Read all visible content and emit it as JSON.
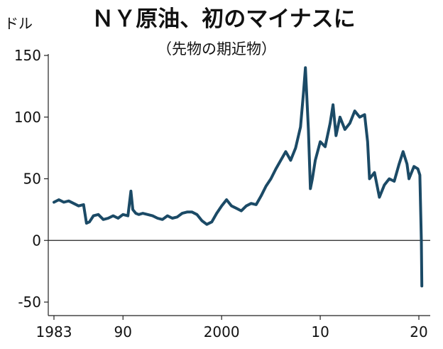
{
  "chart_data": {
    "type": "line",
    "title": "ＮＹ原油、初のマイナスに",
    "subtitle": "（先物の期近物）",
    "ylabel": "ドル",
    "xlabel": "",
    "ylim": [
      -50,
      150
    ],
    "xlim": [
      1983,
      2020.5
    ],
    "grid": false,
    "legend": "none",
    "y_ticks": [
      {
        "value": 150,
        "label": "150"
      },
      {
        "value": 100,
        "label": "100"
      },
      {
        "value": 50,
        "label": "50"
      },
      {
        "value": 0,
        "label": "0"
      },
      {
        "value": -50,
        "label": "-50"
      }
    ],
    "x_ticks": [
      {
        "value": 1983,
        "label": "1983"
      },
      {
        "value": 1990,
        "label": "90"
      },
      {
        "value": 2000,
        "label": "2000"
      },
      {
        "value": 2010,
        "label": "10"
      },
      {
        "value": 2020,
        "label": "20"
      }
    ],
    "colors": {
      "line": "#1b4a66",
      "axis": "#222222",
      "zero_line": "#222222"
    },
    "series": [
      {
        "x": [
          1983.0,
          1983.5,
          1984.0,
          1984.5,
          1985.0,
          1985.5,
          1986.0,
          1986.3,
          1986.6,
          1987.0,
          1987.5,
          1988.0,
          1988.5,
          1989.0,
          1989.5,
          1990.0,
          1990.5,
          1990.8,
          1991.0,
          1991.3,
          1991.6,
          1992.0,
          1992.5,
          1993.0,
          1993.5,
          1994.0,
          1994.5,
          1995.0,
          1995.5,
          1996.0,
          1996.5,
          1997.0,
          1997.5,
          1998.0,
          1998.5,
          1999.0,
          1999.5,
          2000.0,
          2000.5,
          2001.0,
          2001.5,
          2002.0,
          2002.5,
          2003.0,
          2003.5,
          2004.0,
          2004.5,
          2005.0,
          2005.5,
          2006.0,
          2006.5,
          2007.0,
          2007.5,
          2008.0,
          2008.3,
          2008.5,
          2008.8,
          2009.0,
          2009.2,
          2009.5,
          2010.0,
          2010.5,
          2011.0,
          2011.3,
          2011.6,
          2012.0,
          2012.5,
          2013.0,
          2013.5,
          2014.0,
          2014.5,
          2014.8,
          2015.0,
          2015.5,
          2016.0,
          2016.5,
          2017.0,
          2017.5,
          2018.0,
          2018.4,
          2018.8,
          2019.0,
          2019.5,
          2019.9,
          2020.1,
          2020.25,
          2020.3
        ],
        "values": [
          31,
          33,
          31,
          32,
          30,
          28,
          29,
          14,
          15,
          20,
          21,
          17,
          18,
          20,
          18,
          21,
          20,
          40,
          25,
          22,
          21,
          22,
          21,
          20,
          18,
          17,
          20,
          18,
          19,
          22,
          23,
          23,
          21,
          16,
          13,
          15,
          22,
          28,
          33,
          28,
          26,
          24,
          28,
          30,
          29,
          36,
          44,
          50,
          58,
          65,
          72,
          65,
          75,
          92,
          120,
          140,
          90,
          42,
          50,
          65,
          80,
          76,
          95,
          110,
          85,
          100,
          90,
          95,
          105,
          100,
          102,
          80,
          50,
          55,
          35,
          45,
          50,
          48,
          62,
          72,
          62,
          50,
          60,
          58,
          53,
          0,
          -37
        ]
      }
    ]
  }
}
